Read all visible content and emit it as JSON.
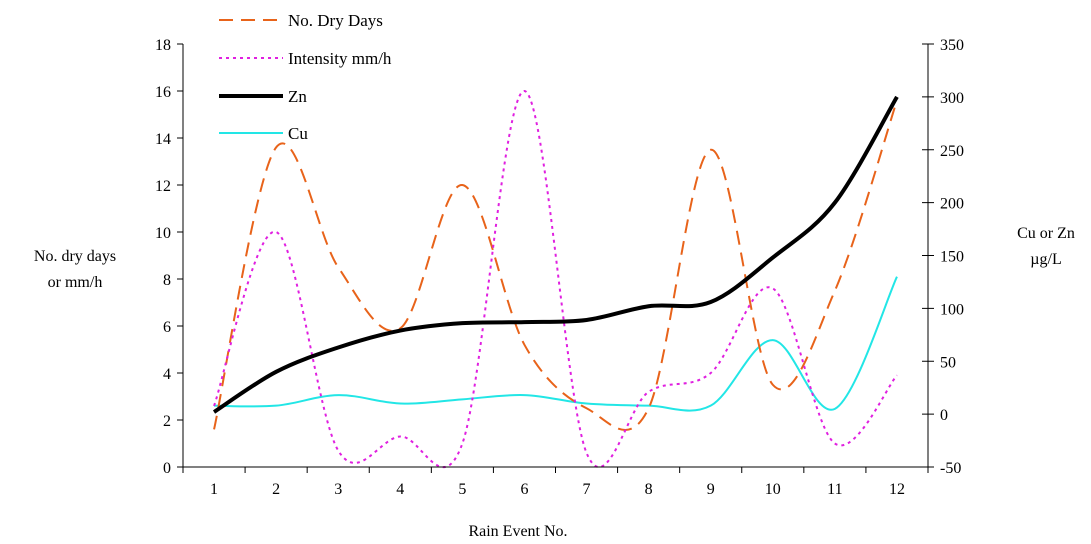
{
  "chart_data": {
    "type": "line",
    "title": "",
    "xlabel": "Rain Event No.",
    "ylabel_left": [
      "No. dry days",
      "or mm/h"
    ],
    "ylabel_right": [
      "Cu or Zn",
      "µg/L"
    ],
    "categories": [
      "1",
      "2",
      "3",
      "4",
      "5",
      "6",
      "7",
      "8",
      "9",
      "10",
      "11",
      "12"
    ],
    "x": [
      1,
      2,
      3,
      4,
      5,
      6,
      7,
      8,
      9,
      10,
      11,
      12
    ],
    "y_left_range": [
      0,
      18
    ],
    "y_left_ticks": [
      0,
      2,
      4,
      6,
      8,
      10,
      12,
      14,
      16,
      18
    ],
    "y_right_range": [
      -50,
      350
    ],
    "y_right_ticks": [
      -50,
      0,
      50,
      100,
      150,
      200,
      250,
      300,
      350
    ],
    "grid": false,
    "legend_position": "top-left",
    "series": [
      {
        "name": "No. Dry Days",
        "axis": "left",
        "color": "#E8631A",
        "dash": "dashed",
        "values": [
          1.6,
          13.6,
          8.5,
          5.9,
          12.0,
          5.2,
          2.5,
          2.5,
          13.5,
          3.5,
          7.5,
          15.6
        ]
      },
      {
        "name": "Intensity mm/h",
        "axis": "left",
        "color": "#E020E0",
        "dash": "dotted",
        "values": [
          2.6,
          10.0,
          0.7,
          1.3,
          1.0,
          16.0,
          0.6,
          3.2,
          4.0,
          7.6,
          1.0,
          3.9
        ]
      },
      {
        "name": "Zn",
        "axis": "right",
        "color": "#000000",
        "dash": "solid-thick",
        "values": [
          2,
          40,
          63,
          79,
          86,
          87,
          89,
          102,
          106,
          148,
          200,
          300
        ]
      },
      {
        "name": "Cu",
        "axis": "right",
        "color": "#22E6E6",
        "dash": "solid",
        "values": [
          8,
          8,
          18,
          10,
          14,
          18,
          10,
          8,
          8,
          70,
          5,
          130
        ]
      }
    ]
  }
}
